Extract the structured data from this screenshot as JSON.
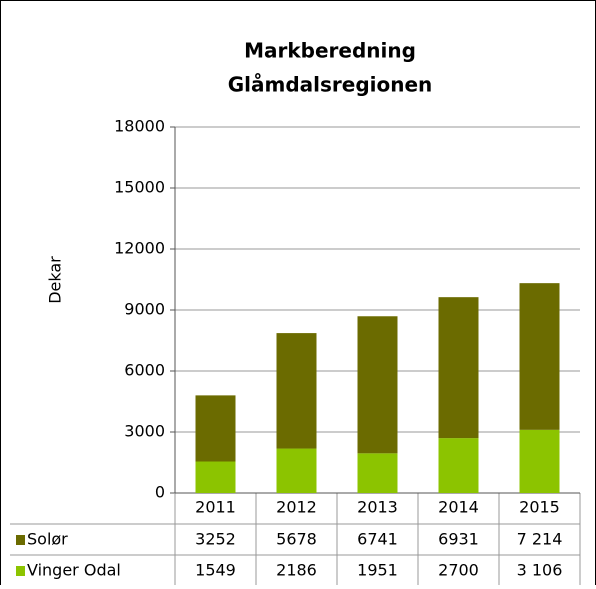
{
  "chart_data": {
    "type": "bar",
    "stacked": true,
    "title": [
      "Markberedning",
      "Glåmdalsregionen"
    ],
    "y_label": "Dekar",
    "categories": [
      "2011",
      "2012",
      "2013",
      "2014",
      "2015"
    ],
    "series": [
      {
        "name": "Vinger Odal",
        "color": "#8cc400",
        "values": [
          1549,
          2186,
          1951,
          2700,
          3106
        ],
        "value_labels": [
          "1549",
          "2186",
          "1951",
          "2700",
          "3 106"
        ]
      },
      {
        "name": "Solør",
        "color": "#6b6b00",
        "values": [
          3252,
          5678,
          6741,
          6931,
          7214
        ],
        "value_labels": [
          "3252",
          "5678",
          "6741",
          "6931",
          "7 214"
        ]
      }
    ],
    "ylim": [
      0,
      18000
    ],
    "yticks": [
      0,
      3000,
      6000,
      9000,
      12000,
      15000,
      18000
    ],
    "grid": true
  }
}
